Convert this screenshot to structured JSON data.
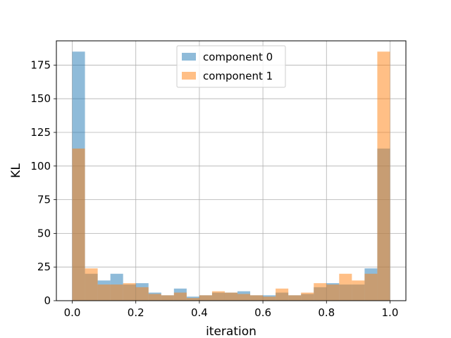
{
  "chart_data": {
    "type": "bar",
    "xlabel": "iteration",
    "ylabel": "KL",
    "xlim": [
      -0.05,
      1.05
    ],
    "ylim": [
      0,
      193
    ],
    "xticks": [
      "0.0",
      "0.2",
      "0.4",
      "0.6",
      "0.8",
      "1.0"
    ],
    "yticks": [
      "0",
      "25",
      "50",
      "75",
      "100",
      "125",
      "150",
      "175"
    ],
    "grid": true,
    "legend": "top-center",
    "bin_edges": [
      0.0,
      0.04,
      0.08,
      0.12,
      0.16,
      0.2,
      0.24,
      0.28,
      0.32,
      0.36,
      0.4,
      0.44,
      0.48,
      0.52,
      0.56,
      0.6,
      0.64,
      0.68,
      0.72,
      0.76,
      0.8,
      0.84,
      0.88,
      0.92,
      0.96,
      1.0
    ],
    "series": [
      {
        "name": "component 0",
        "color": "#1f77b4",
        "values": [
          185,
          20,
          15,
          20,
          12,
          13,
          6,
          4,
          9,
          3,
          4,
          6,
          6,
          7,
          4,
          4,
          6,
          4,
          5,
          10,
          13,
          12,
          12,
          24,
          113
        ]
      },
      {
        "name": "component 1",
        "color": "#ff7f0e",
        "values": [
          113,
          24,
          12,
          12,
          13,
          10,
          5,
          4,
          6,
          2,
          4,
          7,
          6,
          5,
          4,
          3,
          9,
          4,
          6,
          13,
          12,
          20,
          15,
          20,
          185
        ]
      }
    ]
  }
}
